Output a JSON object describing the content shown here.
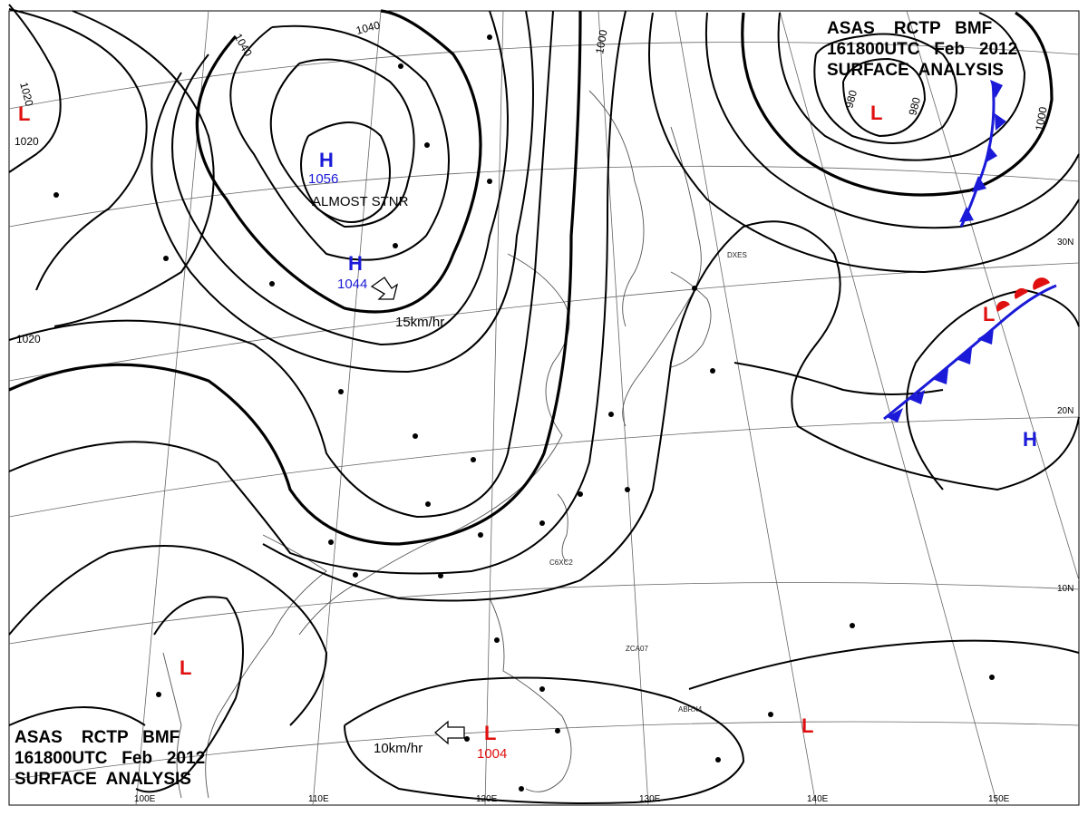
{
  "header_top": {
    "line1": "ASAS    RCTP   BMF",
    "line2": "161800UTC   Feb   2012",
    "line3": "SURFACE  ANALYSIS"
  },
  "header_bottom": {
    "line1": "ASAS    RCTP   BMF",
    "line2": "161800UTC   Feb   2012",
    "line3": "SURFACE  ANALYSIS"
  },
  "longitude_labels": [
    "100E",
    "110E",
    "120E",
    "130E",
    "140E",
    "150E"
  ],
  "latitude_labels": [
    "30N",
    "20N",
    "10N"
  ],
  "isobar_labels": [
    "1040",
    "1040",
    "1020",
    "1020",
    "1020",
    "1000",
    "980",
    "980",
    "1000"
  ],
  "systems": [
    {
      "type": "H",
      "pressure": "1056",
      "note": "ALMOST STNR",
      "color": "#1a1ad8"
    },
    {
      "type": "H",
      "pressure": "1044",
      "motion": "15km/hr",
      "color": "#1a1ad8"
    },
    {
      "type": "H",
      "color": "#1a1ad8"
    },
    {
      "type": "L",
      "color": "#e01010"
    },
    {
      "type": "L",
      "color": "#e01010"
    },
    {
      "type": "L",
      "color": "#e01010"
    },
    {
      "type": "L",
      "pressure": "1004",
      "motion": "10km/hr",
      "color": "#e01010"
    },
    {
      "type": "L",
      "color": "#e01010"
    },
    {
      "type": "L",
      "color": "#e01010"
    }
  ],
  "station_ids": [
    "C6XC2",
    "ZCA07",
    "ABRX4",
    "DXES"
  ],
  "colors": {
    "high": "#1a1ad8",
    "low": "#e01010",
    "cold_front": "#1a1ad8",
    "warm_front": "#e01010"
  }
}
